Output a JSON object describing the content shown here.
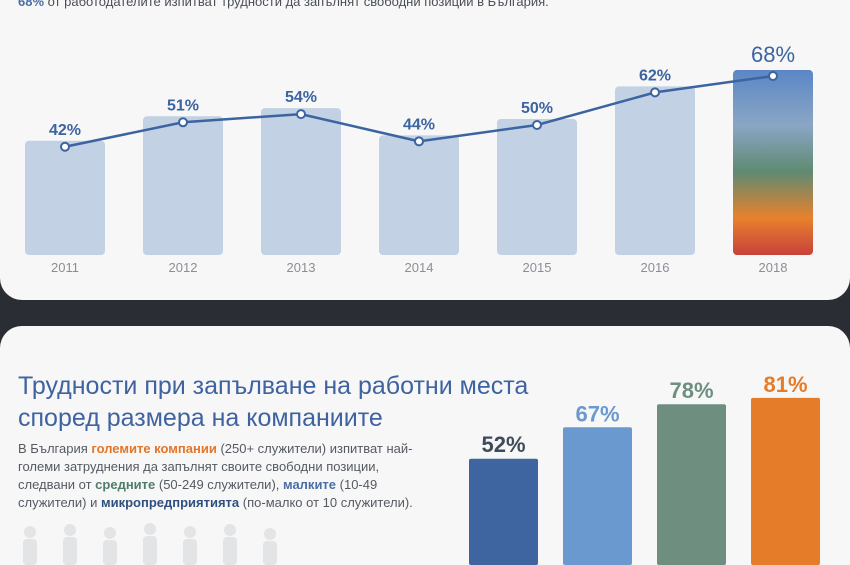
{
  "intro": {
    "highlight": "68%",
    "text": " от работодателите изпитват трудности да запълнят свободни позиции в България."
  },
  "chart_data": [
    {
      "type": "bar",
      "title": "",
      "categories": [
        "2011",
        "2012",
        "2013",
        "2014",
        "2015",
        "2016",
        "2018"
      ],
      "values": [
        42,
        51,
        54,
        44,
        50,
        62,
        68
      ],
      "labels": [
        "42%",
        "51%",
        "54%",
        "44%",
        "50%",
        "62%",
        "68%"
      ],
      "line_overlay": true,
      "ylim": [
        0,
        80
      ],
      "colors": {
        "bar": "#c2d1e3",
        "line": "#3b64a0",
        "label": "#3b64a0",
        "axis_text": "#8a8f96"
      }
    },
    {
      "type": "bar",
      "title": "Трудности при запълване на работни места според размера на компаниите",
      "categories": [
        "микропредприятия",
        "малки",
        "средни",
        "големи"
      ],
      "values": [
        52,
        67,
        78,
        81
      ],
      "labels": [
        "52%",
        "67%",
        "78%",
        "81%"
      ],
      "ylim": [
        0,
        100
      ],
      "colors": [
        "#3f65a0",
        "#6a99cf",
        "#6e8f80",
        "#e57c2a"
      ]
    }
  ],
  "section2": {
    "title_line1": "Трудности при запълване на работни места",
    "title_line2": "според размера на компаниите",
    "desc": {
      "p1": "В България ",
      "large": "големите компании",
      "p2": " (250+ служители) изпитват най-големи затруднения да запълнят своите свободни позиции, следвани от ",
      "medium": "средните",
      "p3": " (50-249 служители), ",
      "small": "малките",
      "p4": " (10-49 служители) и ",
      "micro": "микропредприятията",
      "p5": " (по-малко от 10 служители)."
    }
  }
}
